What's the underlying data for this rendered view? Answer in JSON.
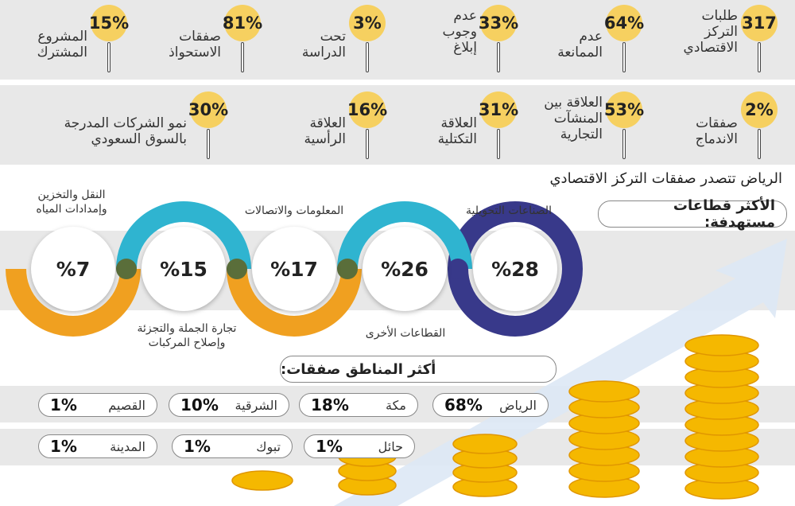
{
  "top_stats_row1": [
    {
      "value": "317",
      "label": "طلبات التركز الاقتصادي"
    },
    {
      "value": "64%",
      "label": "عدم الممانعة"
    },
    {
      "value": "33%",
      "label": "عدم وجوب إبلاغ"
    },
    {
      "value": "3%",
      "label": "تحت الدراسة"
    },
    {
      "value": "81%",
      "label": "صفقات الاستحواذ"
    },
    {
      "value": "15%",
      "label": "المشروع المشترك"
    }
  ],
  "top_stats_row2": [
    {
      "value": "2%",
      "label": "صفقات الاندماج"
    },
    {
      "value": "53%",
      "label": "العلاقة بين المنشآت التجارية"
    },
    {
      "value": "31%",
      "label": "العلاقة التكتلية"
    },
    {
      "value": "16%",
      "label": "العلاقة الرأسية"
    },
    {
      "value": "30%",
      "label": "نمو الشركات المدرجة بالسوق السعودي"
    }
  ],
  "headline": "الرياض تتصدر صفقات التركز الاقتصادي",
  "sectors_title": "الأكثر قطاعات مستهدفة:",
  "sectors": [
    {
      "value": "%28",
      "label": "الصناعات التحويلية"
    },
    {
      "value": "%26",
      "label": "القطاعات الأخرى"
    },
    {
      "value": "%17",
      "label": "المعلومات والاتصالات"
    },
    {
      "value": "%15",
      "label": "تجارة الجملة والتجزئة وإصلاح المركبات"
    },
    {
      "value": "%7",
      "label": "النقل والتخزين وإمدادات المياه"
    }
  ],
  "regions_title": "أكثر المناطق صفقات:",
  "regions": [
    {
      "name": "الرياض",
      "value": "68%"
    },
    {
      "name": "مكة",
      "value": "18%"
    },
    {
      "name": "الشرقية",
      "value": "10%"
    },
    {
      "name": "القصيم",
      "value": "1%"
    },
    {
      "name": "حائل",
      "value": "1%"
    },
    {
      "name": "تبوك",
      "value": "1%"
    },
    {
      "name": "المدينة",
      "value": "1%"
    }
  ],
  "colors": {
    "gold": "#f6d060",
    "teal": "#2fb4d0",
    "orange": "#f0a020",
    "navy": "#38398a",
    "olive": "#5a6e3a"
  }
}
